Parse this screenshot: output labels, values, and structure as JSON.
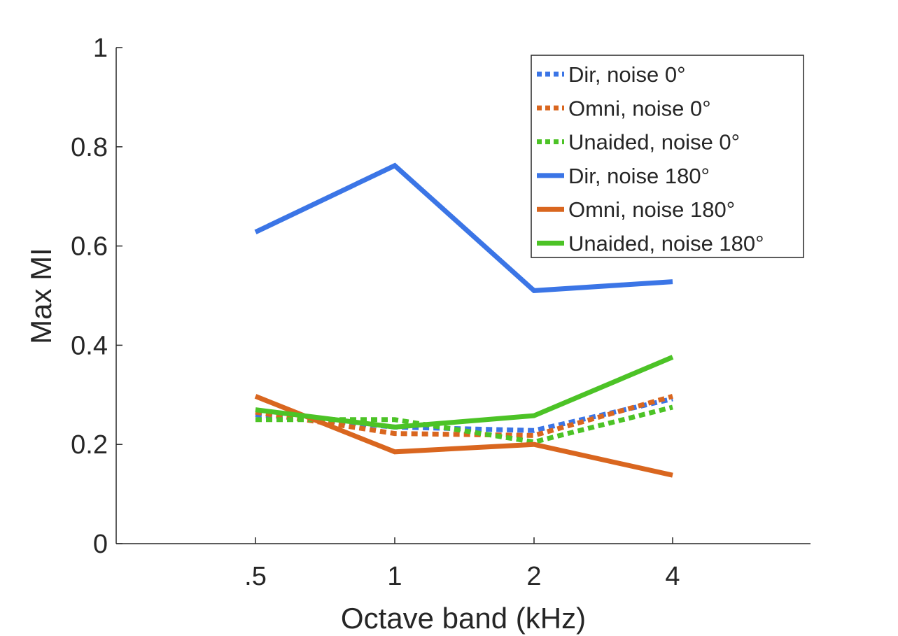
{
  "chart_data": {
    "type": "line",
    "title": "",
    "xlabel": "Octave band (kHz)",
    "ylabel": "Max MI",
    "categories": [
      ".5",
      "1",
      "2",
      "4"
    ],
    "ylim": [
      0,
      1
    ],
    "yticks": [
      "0",
      "0.2",
      "0.4",
      "0.6",
      "0.8",
      "1"
    ],
    "grid": false,
    "legend_position": "top-right",
    "series": [
      {
        "name": "Dir, noise 0°",
        "values": [
          0.26,
          0.235,
          0.228,
          0.292
        ],
        "color": "#3b75e6",
        "style": "dotted"
      },
      {
        "name": "Omni, noise 0°",
        "values": [
          0.265,
          0.222,
          0.218,
          0.297
        ],
        "color": "#d9661f",
        "style": "dotted"
      },
      {
        "name": "Unaided, noise 0°",
        "values": [
          0.25,
          0.25,
          0.205,
          0.275
        ],
        "color": "#4cc326",
        "style": "dotted"
      },
      {
        "name": "Dir, noise 180°",
        "values": [
          0.628,
          0.762,
          0.51,
          0.528
        ],
        "color": "#3b75e6",
        "style": "solid"
      },
      {
        "name": "Omni, noise 180°",
        "values": [
          0.297,
          0.185,
          0.2,
          0.138
        ],
        "color": "#d9661f",
        "style": "solid"
      },
      {
        "name": "Unaided, noise 180°",
        "values": [
          0.27,
          0.235,
          0.258,
          0.376
        ],
        "color": "#4cc326",
        "style": "solid"
      }
    ]
  }
}
